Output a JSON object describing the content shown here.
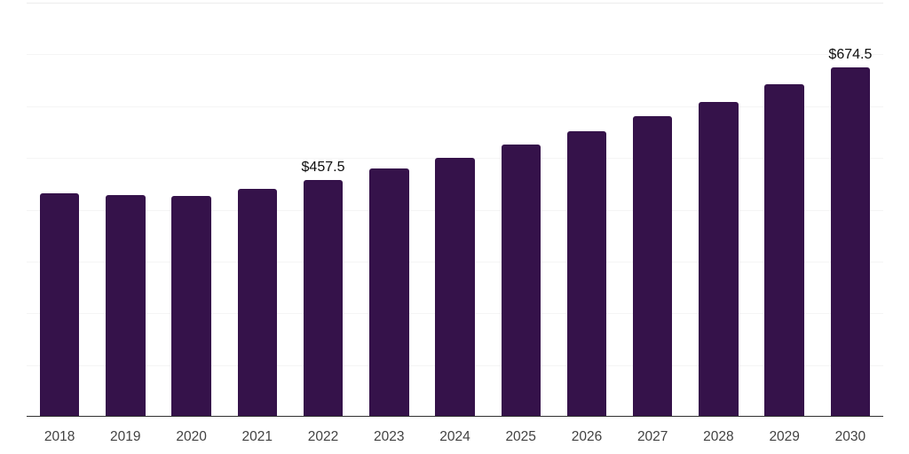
{
  "chart_data": {
    "type": "bar",
    "title": "",
    "xlabel": "",
    "ylabel": "",
    "categories": [
      "2018",
      "2019",
      "2020",
      "2021",
      "2022",
      "2023",
      "2024",
      "2025",
      "2026",
      "2027",
      "2028",
      "2029",
      "2030"
    ],
    "values": [
      432,
      429,
      426,
      440,
      457.5,
      480,
      501,
      526,
      552,
      580,
      609,
      642,
      674.5
    ],
    "data_labels": {
      "2022": "$457.5",
      "2030": "$674.5"
    },
    "ylim": [
      0,
      800
    ],
    "gridline_step": 100,
    "grid": "horizontal",
    "legend": "none",
    "y_axis_tick_labels_visible": false,
    "colors": {
      "bar": "#35124A",
      "axis_line": "#313131",
      "tick_label": "#424242",
      "data_label": "#0d0d0d",
      "gridline": "#f5f5f5",
      "top_gridline": "#ececec",
      "background": "#ffffff"
    }
  }
}
